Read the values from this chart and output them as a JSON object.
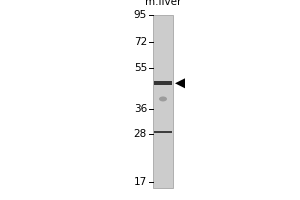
{
  "fig_width": 3.0,
  "fig_height": 2.0,
  "dpi": 100,
  "bg_color": "#ffffff",
  "mw_markers": [
    95,
    72,
    55,
    36,
    28,
    17
  ],
  "lane_label": "m.liver",
  "band_main_kda": 47,
  "band_dot_kda": 40,
  "band_low_kda": 28.5,
  "gel_lane_color": "#cccccc",
  "gel_border_color": "#999999",
  "band_color": "#1a1a1a",
  "arrow_color": "#000000",
  "text_color": "#000000",
  "label_fontsize": 7.5,
  "lane_label_fontsize": 7.5
}
